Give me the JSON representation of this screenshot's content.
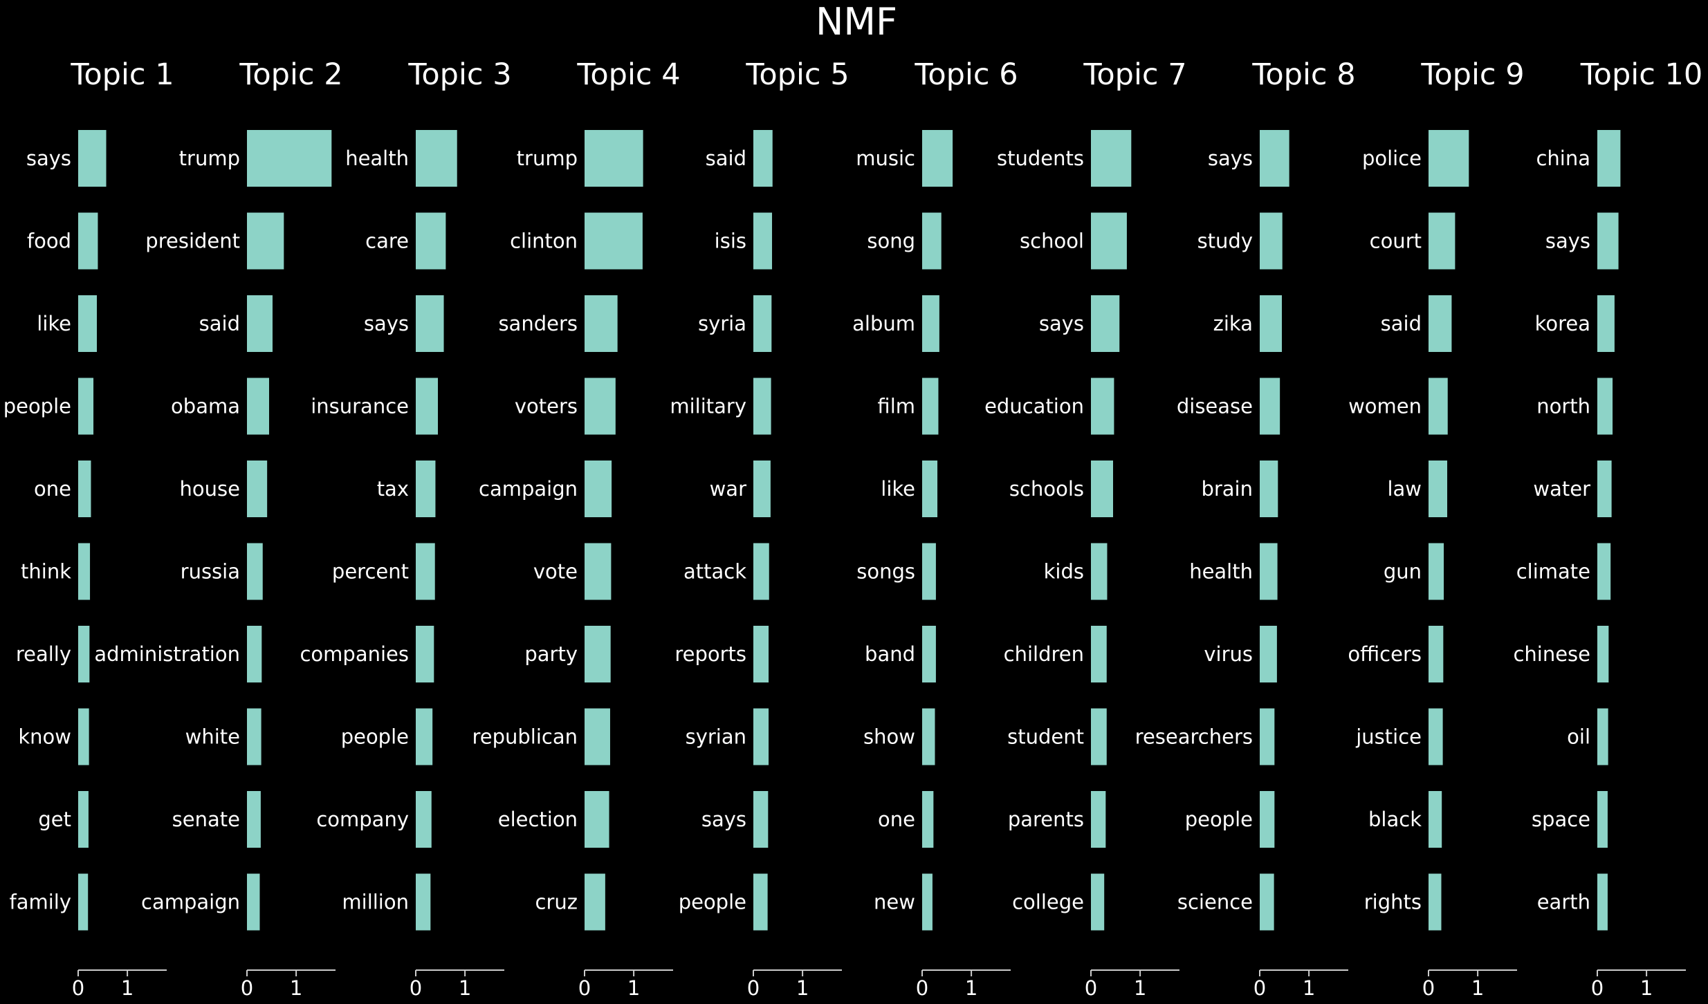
{
  "chart_data": {
    "type": "bar",
    "orientation": "horizontal",
    "title": "NMF",
    "background_color": "#000000",
    "bar_color": "#8dd3c7",
    "text_color": "#ffffff",
    "xlim": [
      0,
      1.8
    ],
    "xticks": [
      0,
      1
    ],
    "grid": false,
    "legend": "none",
    "panels": [
      {
        "title": "Topic 1",
        "categories": [
          "says",
          "food",
          "like",
          "people",
          "one",
          "think",
          "really",
          "know",
          "get",
          "family"
        ],
        "values": [
          0.57,
          0.4,
          0.38,
          0.31,
          0.26,
          0.24,
          0.23,
          0.22,
          0.21,
          0.2
        ]
      },
      {
        "title": "Topic 2",
        "categories": [
          "trump",
          "president",
          "said",
          "obama",
          "house",
          "russia",
          "administration",
          "white",
          "senate",
          "campaign"
        ],
        "values": [
          1.72,
          0.75,
          0.52,
          0.45,
          0.41,
          0.32,
          0.3,
          0.29,
          0.28,
          0.26
        ]
      },
      {
        "title": "Topic 3",
        "categories": [
          "health",
          "care",
          "says",
          "insurance",
          "tax",
          "percent",
          "companies",
          "people",
          "company",
          "million"
        ],
        "values": [
          0.84,
          0.61,
          0.57,
          0.45,
          0.4,
          0.39,
          0.37,
          0.34,
          0.32,
          0.3
        ]
      },
      {
        "title": "Topic 4",
        "categories": [
          "trump",
          "clinton",
          "sanders",
          "voters",
          "campaign",
          "vote",
          "party",
          "republican",
          "election",
          "cruz"
        ],
        "values": [
          1.19,
          1.18,
          0.67,
          0.63,
          0.55,
          0.54,
          0.53,
          0.52,
          0.5,
          0.42
        ]
      },
      {
        "title": "Topic 5",
        "categories": [
          "said",
          "isis",
          "syria",
          "military",
          "war",
          "attack",
          "reports",
          "syrian",
          "says",
          "people"
        ],
        "values": [
          0.39,
          0.38,
          0.37,
          0.36,
          0.35,
          0.32,
          0.31,
          0.31,
          0.3,
          0.29
        ]
      },
      {
        "title": "Topic 6",
        "categories": [
          "music",
          "song",
          "album",
          "film",
          "like",
          "songs",
          "band",
          "show",
          "one",
          "new"
        ],
        "values": [
          0.62,
          0.39,
          0.35,
          0.33,
          0.31,
          0.28,
          0.28,
          0.26,
          0.23,
          0.21
        ]
      },
      {
        "title": "Topic 7",
        "categories": [
          "students",
          "school",
          "says",
          "education",
          "schools",
          "kids",
          "children",
          "student",
          "parents",
          "college"
        ],
        "values": [
          0.82,
          0.73,
          0.58,
          0.47,
          0.45,
          0.33,
          0.32,
          0.32,
          0.3,
          0.27
        ]
      },
      {
        "title": "Topic 8",
        "categories": [
          "says",
          "study",
          "zika",
          "disease",
          "brain",
          "health",
          "virus",
          "researchers",
          "people",
          "science"
        ],
        "values": [
          0.6,
          0.46,
          0.45,
          0.41,
          0.37,
          0.36,
          0.35,
          0.3,
          0.3,
          0.29
        ]
      },
      {
        "title": "Topic 9",
        "categories": [
          "police",
          "court",
          "said",
          "women",
          "law",
          "gun",
          "officers",
          "justice",
          "black",
          "rights"
        ],
        "values": [
          0.82,
          0.54,
          0.47,
          0.39,
          0.38,
          0.31,
          0.3,
          0.29,
          0.27,
          0.26
        ]
      },
      {
        "title": "Topic 10",
        "categories": [
          "china",
          "says",
          "korea",
          "north",
          "water",
          "climate",
          "chinese",
          "oil",
          "space",
          "earth"
        ],
        "values": [
          0.47,
          0.43,
          0.35,
          0.31,
          0.29,
          0.27,
          0.23,
          0.22,
          0.21,
          0.21
        ]
      }
    ]
  }
}
